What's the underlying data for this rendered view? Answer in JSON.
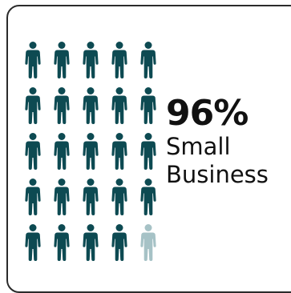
{
  "chart_data": {
    "type": "pictogram",
    "total_icons": 25,
    "rows": 5,
    "columns": 5,
    "highlighted_icons": 24,
    "value_percent": 96,
    "value_label": "96%",
    "label_lines": [
      "Small",
      "Business"
    ]
  },
  "colors": {
    "highlighted": "#0d4a52",
    "remainder": "#a6c2c6",
    "text": "#111111",
    "border": "#2b2b2b"
  },
  "icons": {
    "unit": "person-icon"
  }
}
